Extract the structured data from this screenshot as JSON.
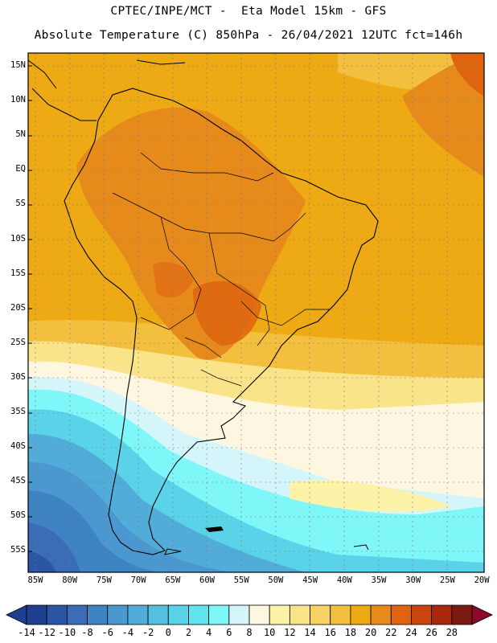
{
  "header": {
    "line1": "CPTEC/INPE/MCT -  Eta Model 15km - GFS",
    "line2": "Absolute Temperature (C) 850hPa - 26/04/2021 12UTC fct=146h"
  },
  "axes": {
    "lat_labels": [
      "15N",
      "10N",
      "5N",
      "EQ",
      "5S",
      "10S",
      "15S",
      "20S",
      "25S",
      "30S",
      "35S",
      "40S",
      "45S",
      "50S",
      "55S"
    ],
    "lon_labels": [
      "85W",
      "80W",
      "75W",
      "70W",
      "65W",
      "60W",
      "55W",
      "50W",
      "45W",
      "40W",
      "35W",
      "30W",
      "25W",
      "20W"
    ]
  },
  "colorbar": {
    "labels": [
      "-14",
      "-12",
      "-10",
      "-8",
      "-6",
      "-4",
      "-2",
      "0",
      "2",
      "4",
      "6",
      "8",
      "10",
      "12",
      "14",
      "16",
      "18",
      "20",
      "22",
      "24",
      "26",
      "28"
    ],
    "colors": [
      "#1f3f8f",
      "#2a56a3",
      "#3a6db5",
      "#3f84c2",
      "#4a98cf",
      "#52acd9",
      "#55c0e0",
      "#5ad3e8",
      "#61e3ee",
      "#7ff6f8",
      "#d4f6fa",
      "#fdf6e0",
      "#fdf3a8",
      "#fae48a",
      "#f7d366",
      "#f3bf3e",
      "#eeaa14",
      "#e78a1c",
      "#de6410",
      "#c8460e",
      "#a8280e",
      "#7a1a10"
    ]
  },
  "map_layers": {
    "background": "#eeaa14",
    "land_warm": "#e78a1c",
    "land_hot": "#de6410",
    "coastline": "#000000"
  }
}
